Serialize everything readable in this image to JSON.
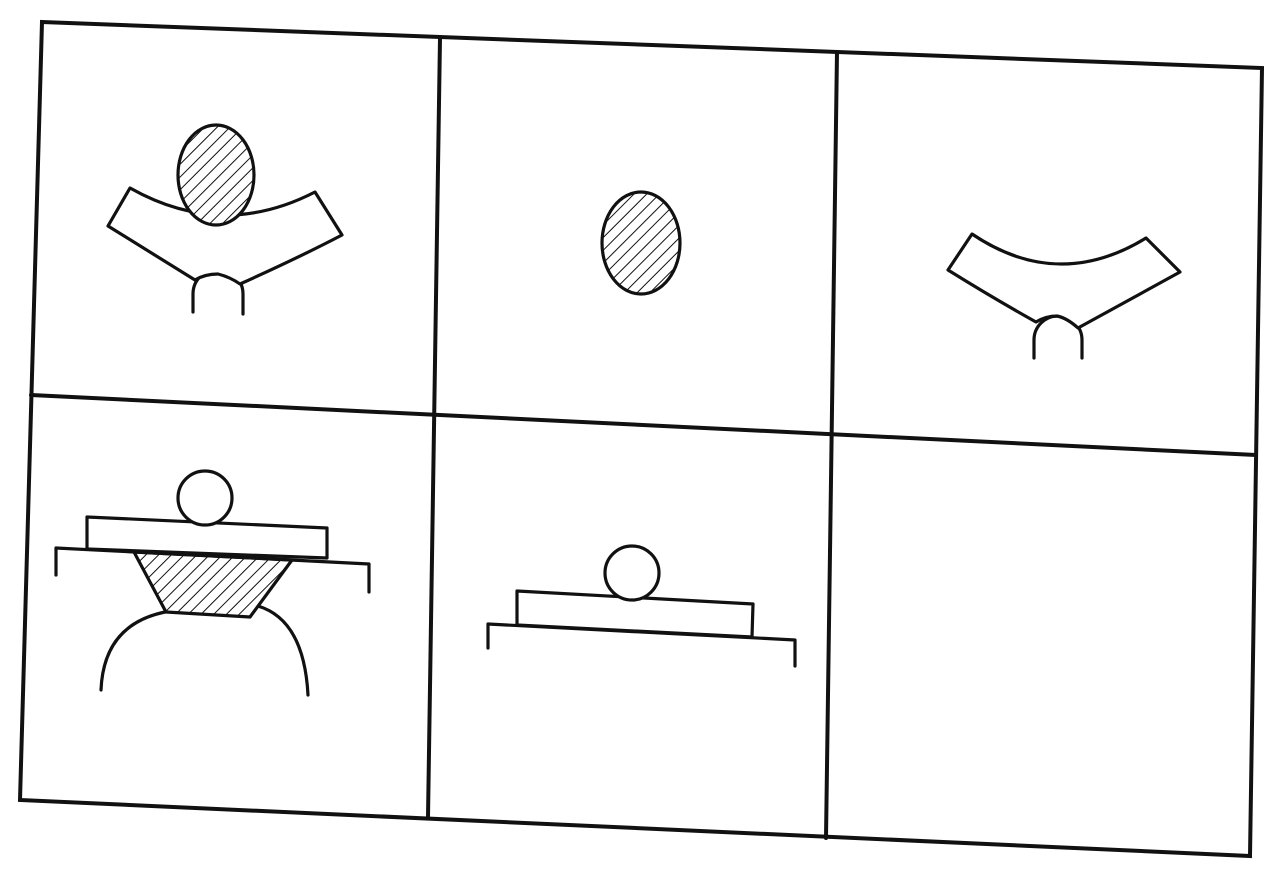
{
  "puzzle": {
    "rows": 2,
    "columns": 3,
    "cells": [
      {
        "position": "row-1-col-1",
        "contents": [
          "hatched-oval",
          "curved-tray",
          "small-circle"
        ],
        "empty": false
      },
      {
        "position": "row-1-col-2",
        "contents": [
          "hatched-oval"
        ],
        "empty": false
      },
      {
        "position": "row-1-col-3",
        "contents": [
          "curved-tray",
          "small-circle"
        ],
        "empty": false
      },
      {
        "position": "row-2-col-1",
        "contents": [
          "small-circle",
          "rectangle-bar",
          "bracket-base",
          "hatched-trapezoid",
          "semicircle-dome"
        ],
        "empty": false
      },
      {
        "position": "row-2-col-2",
        "contents": [
          "small-circle",
          "rectangle-bar",
          "bracket-base"
        ],
        "empty": false
      },
      {
        "position": "row-2-col-3",
        "contents": [],
        "empty": true
      }
    ],
    "colors": {
      "ink": "#111111",
      "background": "#ffffff"
    }
  }
}
